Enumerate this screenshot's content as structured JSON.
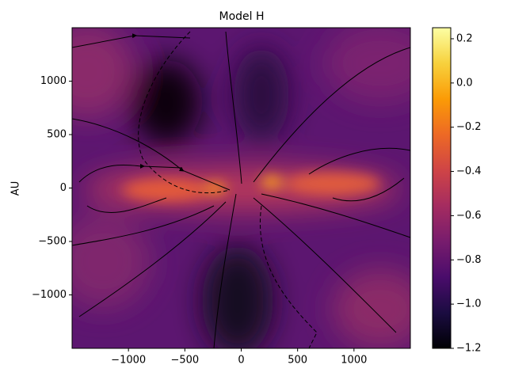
{
  "chart_data": {
    "type": "heatmap",
    "title": "Model H",
    "ylabel": "AU",
    "xlim": [
      -1500,
      1500
    ],
    "ylim": [
      -1500,
      1500
    ],
    "xticks": [
      {
        "value": -1000,
        "label": "−1000"
      },
      {
        "value": -500,
        "label": "−500"
      },
      0,
      500,
      1000
    ],
    "yticks": [
      {
        "value": -1000,
        "label": "−1000"
      },
      {
        "value": -500,
        "label": "−500"
      },
      0,
      500,
      1000
    ],
    "colormap": "inferno",
    "clim": [
      -1.2,
      0.25
    ],
    "cticks": [
      {
        "value": -1.2,
        "label": "−1.2"
      },
      {
        "value": -1.0,
        "label": "−1.0"
      },
      {
        "value": -0.8,
        "label": "−0.8"
      },
      {
        "value": -0.6,
        "label": "−0.6"
      },
      {
        "value": -0.4,
        "label": "−0.4"
      },
      {
        "value": -0.2,
        "label": "−0.2"
      },
      {
        "value": 0.0,
        "label": "0.0"
      },
      0.2
    ]
  }
}
